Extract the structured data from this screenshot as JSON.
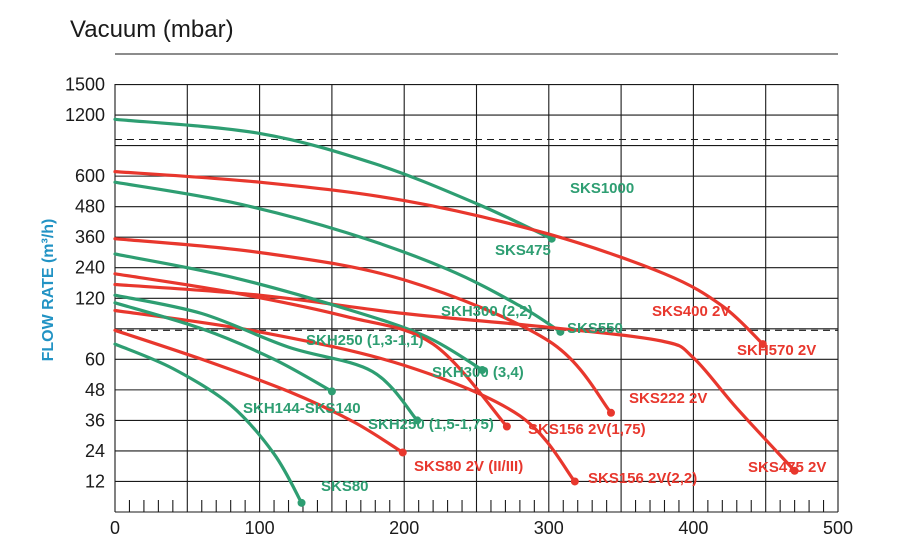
{
  "chart_data": {
    "type": "line",
    "title": "Vacuum (mbar)",
    "ylabel": "FLOW RATE (m³/h)",
    "xlabel": "",
    "colors": {
      "green": "#2e9e72",
      "red": "#e8372d",
      "ylabel": "#2293c4"
    },
    "x_ticks": [
      0,
      100,
      200,
      300,
      400,
      500
    ],
    "xlim": [
      0,
      500
    ],
    "y_axis": {
      "note": "non-linear axis; each entry is [gridline index 0..14 from bottom, label]",
      "ticks": [
        {
          "i": 14,
          "label": "1500"
        },
        {
          "i": 13,
          "label": "1200"
        },
        {
          "i": 11,
          "label": "600"
        },
        {
          "i": 10,
          "label": "480"
        },
        {
          "i": 9,
          "label": "360"
        },
        {
          "i": 8,
          "label": "240"
        },
        {
          "i": 7,
          "label": "120"
        },
        {
          "i": 5,
          "label": "60"
        },
        {
          "i": 4,
          "label": "48"
        },
        {
          "i": 3,
          "label": "36"
        },
        {
          "i": 2,
          "label": "24"
        },
        {
          "i": 1,
          "label": "12"
        }
      ],
      "dashed_levels": [
        12.2,
        5.95
      ]
    },
    "series": [
      {
        "name": "SKS1000",
        "color": "green",
        "points": [
          [
            0,
            12.86
          ],
          [
            100,
            12.4
          ],
          [
            180,
            11.4
          ],
          [
            250,
            10.1
          ],
          [
            302,
            8.95
          ]
        ]
      },
      {
        "name": "SKS475",
        "color": "green",
        "points": [
          [
            0,
            10.8
          ],
          [
            80,
            10.15
          ],
          [
            160,
            9.15
          ],
          [
            230,
            7.95
          ],
          [
            280,
            6.75
          ],
          [
            308,
            5.9
          ]
        ]
      },
      {
        "name": "SKS400 2V",
        "color": "red",
        "points": [
          [
            0,
            11.15
          ],
          [
            100,
            10.8
          ],
          [
            200,
            10.2
          ],
          [
            300,
            9.1
          ],
          [
            380,
            7.8
          ],
          [
            420,
            6.75
          ],
          [
            448,
            5.5
          ]
        ]
      },
      {
        "name": "SKS222 2V",
        "color": "red",
        "points": [
          [
            0,
            8.95
          ],
          [
            100,
            8.5
          ],
          [
            200,
            7.6
          ],
          [
            300,
            5.6
          ],
          [
            343,
            3.25
          ]
        ]
      },
      {
        "name": "SKS475 2V",
        "color": "red",
        "points": [
          [
            0,
            7.45
          ],
          [
            100,
            7.1
          ],
          [
            200,
            6.5
          ],
          [
            300,
            6.05
          ],
          [
            378,
            5.6
          ],
          [
            400,
            5.05
          ],
          [
            430,
            3.4
          ],
          [
            470,
            1.35
          ]
        ]
      },
      {
        "name": "SKH300 (2,2)",
        "color": "green",
        "points": [
          [
            0,
            8.45
          ],
          [
            80,
            7.7
          ],
          [
            160,
            6.65
          ],
          [
            215,
            5.75
          ],
          [
            254,
            4.65
          ]
        ]
      },
      {
        "name": "SKS156 2V(1,75)",
        "color": "red",
        "points": [
          [
            0,
            7.8
          ],
          [
            80,
            7.2
          ],
          [
            160,
            6.4
          ],
          [
            220,
            5.5
          ],
          [
            271,
            2.8
          ]
        ]
      },
      {
        "name": "SKS156 2V(2,2)",
        "color": "red",
        "points": [
          [
            0,
            6.6
          ],
          [
            100,
            5.9
          ],
          [
            200,
            4.8
          ],
          [
            280,
            3.15
          ],
          [
            318,
            1.0
          ]
        ]
      },
      {
        "name": "SKH250 (1,3-1,1)",
        "color": "green",
        "points": [
          [
            0,
            7.1
          ],
          [
            60,
            6.5
          ],
          [
            120,
            5.4
          ],
          [
            178,
            4.6
          ],
          [
            209,
            3.0
          ]
        ]
      },
      {
        "name": "SKH144-SKS140",
        "color": "green",
        "points": [
          [
            0,
            6.85
          ],
          [
            60,
            6.0
          ],
          [
            110,
            5.0
          ],
          [
            150,
            3.95
          ]
        ]
      },
      {
        "name": "SKS80 2V (II/III)",
        "color": "red",
        "points": [
          [
            0,
            5.95
          ],
          [
            60,
            5.0
          ],
          [
            120,
            3.95
          ],
          [
            165,
            2.95
          ],
          [
            199,
            1.95
          ]
        ]
      },
      {
        "name": "SKS80",
        "color": "green",
        "points": [
          [
            0,
            5.5
          ],
          [
            40,
            4.7
          ],
          [
            80,
            3.5
          ],
          [
            110,
            1.9
          ],
          [
            129,
            0.3
          ]
        ]
      }
    ],
    "labels": {
      "SKS1000": "SKS1000",
      "SKS475": "SKS475",
      "SKS550": "SKS550",
      "SKS400 2V": "SKS400 2V",
      "SKH570 2V": "SKH570 2V",
      "SKH300 (2,2)": "SKH300 (2,2)",
      "SKH250 (1,3-1,1)": "SKH250 (1,3-1,1)",
      "SKH300 (3,4)": "SKH300 (3,4)",
      "SKS222 2V": "SKS222 2V",
      "SKH144-SKS140": "SKH144-SKS140",
      "SKH250 (1,5-1,75)": "SKH250 (1,5-1,75)",
      "SKS156 2V(1,75)": "SKS156 2V(1,75)",
      "SKS80 2V (II/III)": "SKS80 2V (II/III)",
      "SKS156 2V(2,2)": "SKS156 2V(2,2)",
      "SKS475 2V": "SKS475 2V",
      "SKS80": "SKS80"
    }
  }
}
